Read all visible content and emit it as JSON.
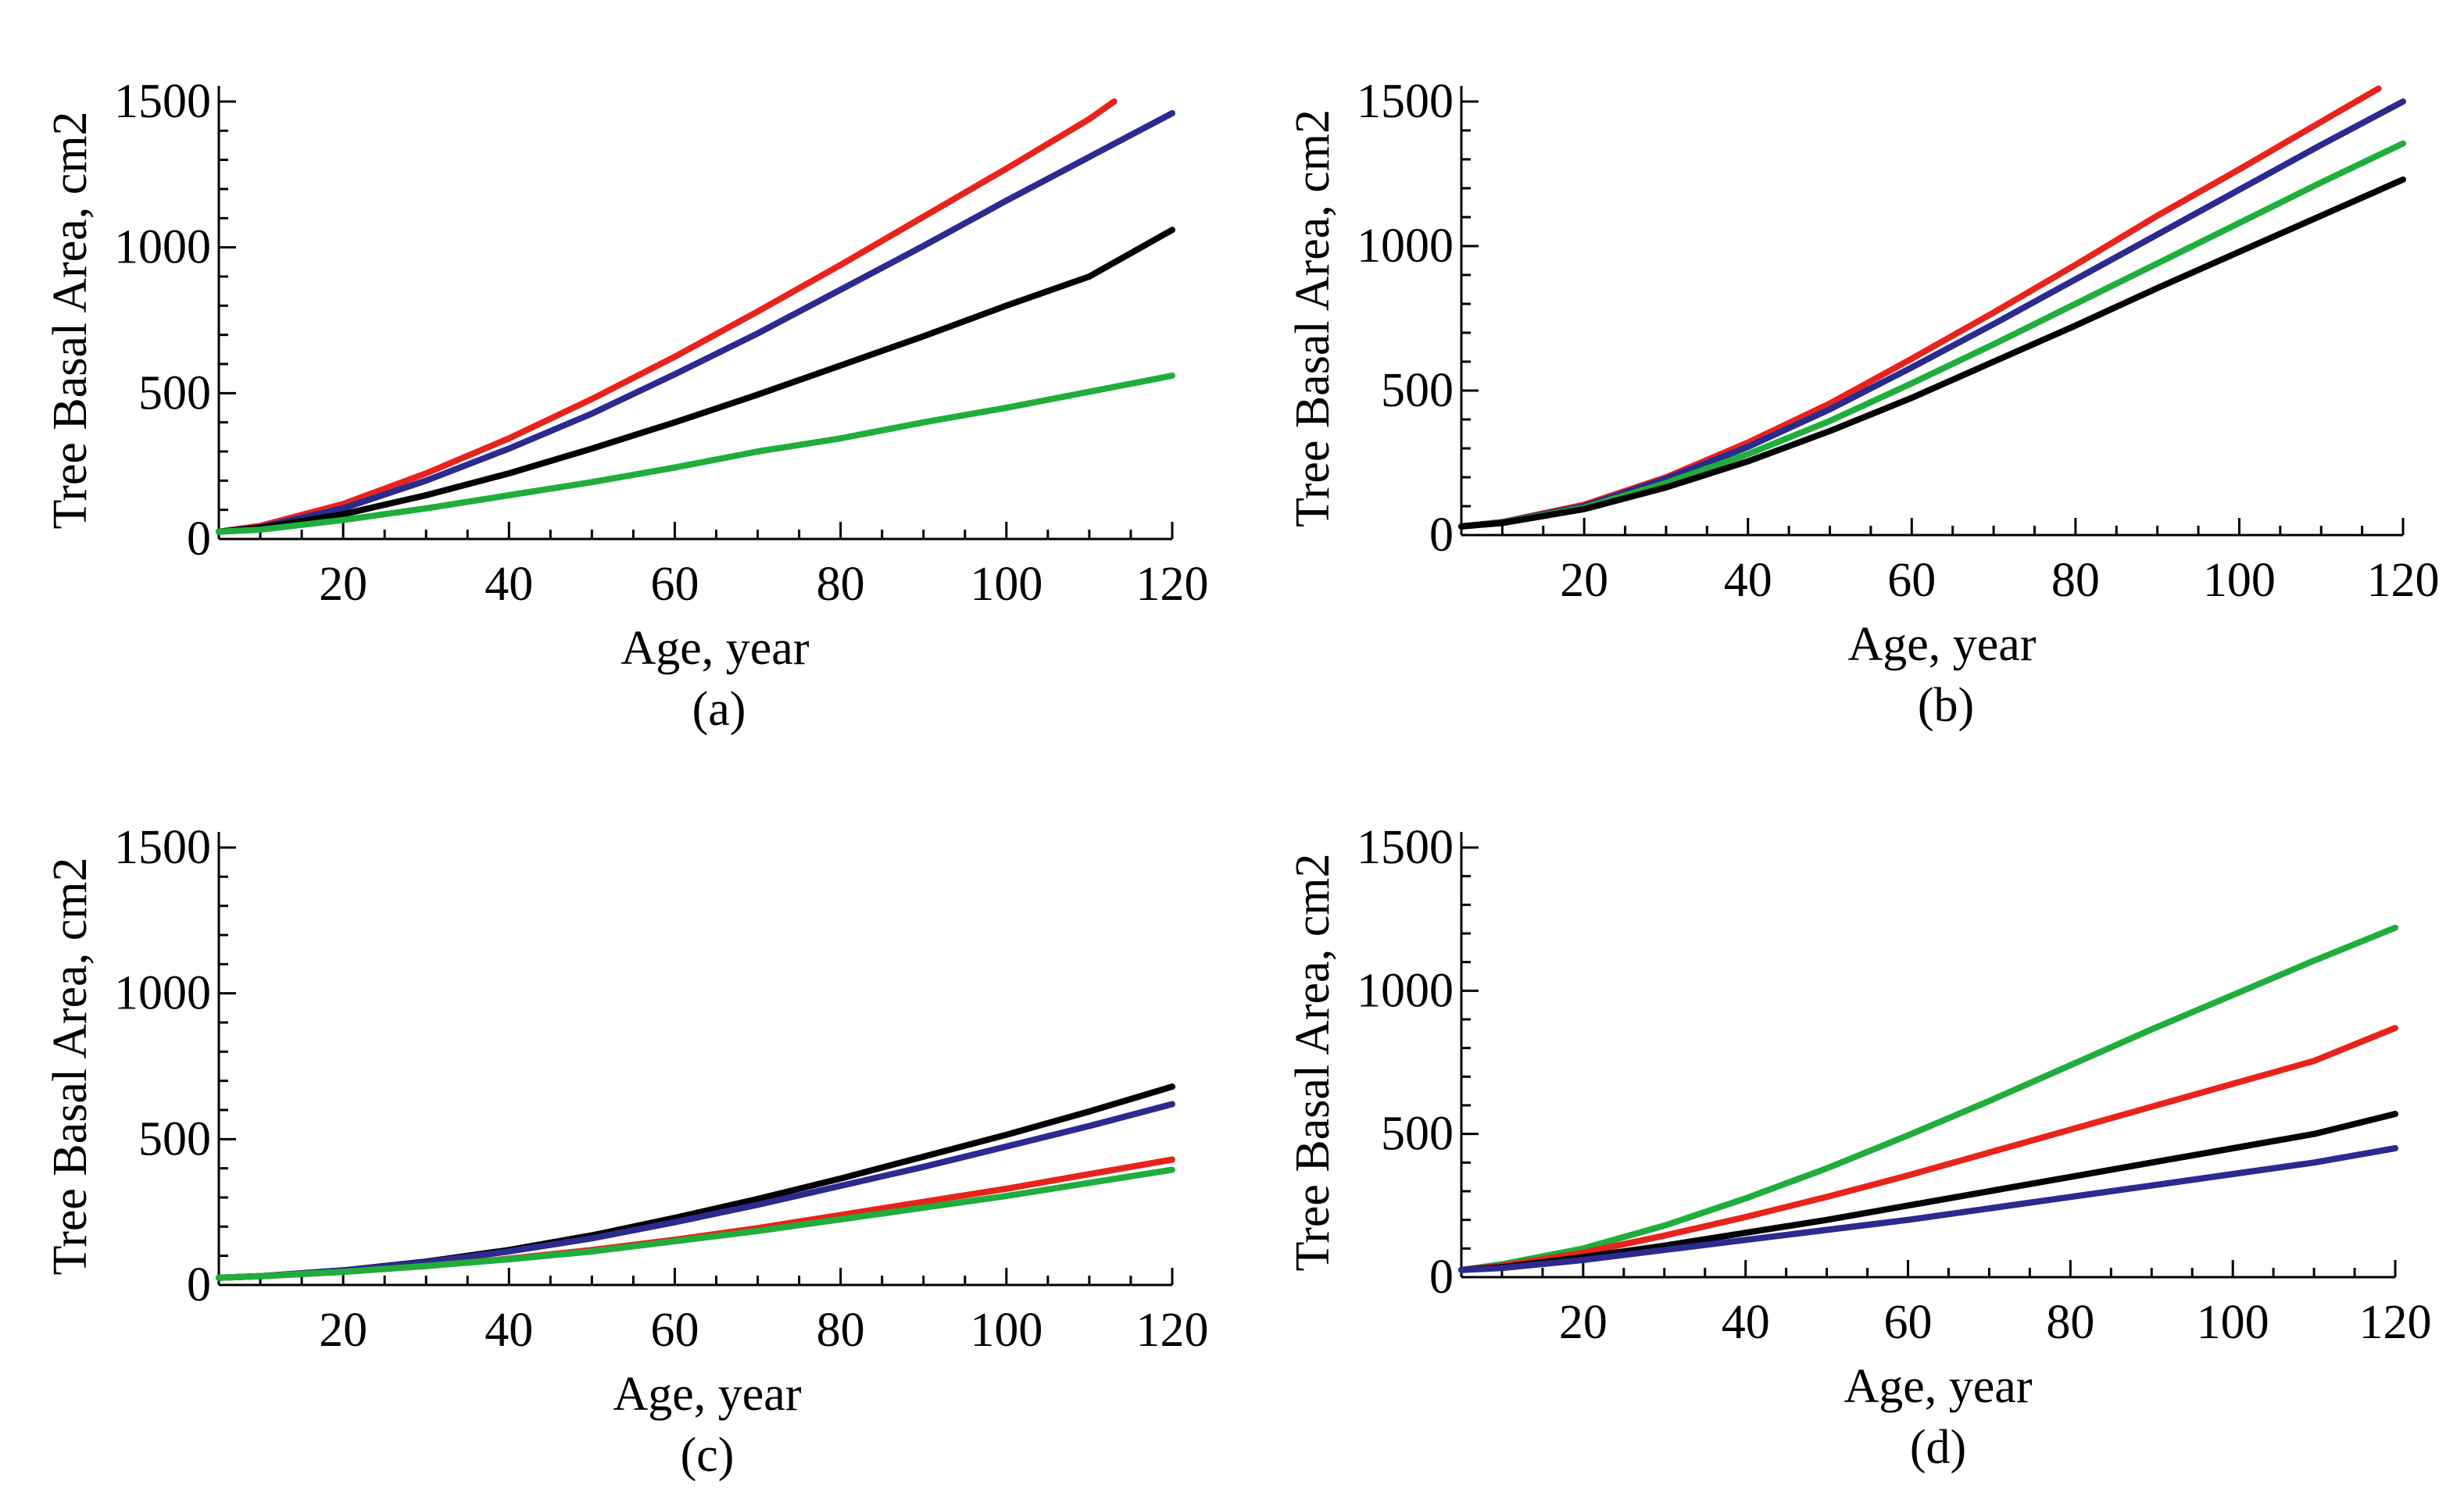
{
  "figure": {
    "colors": {
      "red": "#e8231c",
      "blue": "#2b2a8f",
      "black": "#000000",
      "green": "#1fae3c",
      "axis": "#000000"
    }
  },
  "chart_data": [
    {
      "type": "line",
      "panel": "(a)",
      "title": "",
      "xlabel": "Age, year",
      "ylabel": "Tree Basal Area, cm2",
      "xlim": [
        5,
        120
      ],
      "ylim": [
        0,
        1500
      ],
      "xticks": [
        20,
        40,
        60,
        80,
        100,
        120
      ],
      "yticks": [
        0,
        500,
        1000,
        1500
      ],
      "x": [
        5,
        10,
        20,
        30,
        40,
        50,
        60,
        70,
        80,
        90,
        100,
        110,
        120
      ],
      "series": [
        {
          "name": "red",
          "color": "#e8231c",
          "x": [
            5,
            10,
            20,
            30,
            40,
            50,
            60,
            70,
            80,
            90,
            100,
            110,
            113
          ],
          "values": [
            25,
            45,
            120,
            225,
            345,
            480,
            625,
            780,
            940,
            1105,
            1270,
            1440,
            1500
          ]
        },
        {
          "name": "blue",
          "color": "#2b2a8f",
          "values": [
            25,
            40,
            105,
            200,
            310,
            430,
            565,
            705,
            855,
            1005,
            1160,
            1310,
            1460
          ]
        },
        {
          "name": "black",
          "color": "#000000",
          "values": [
            25,
            38,
            85,
            150,
            225,
            310,
            400,
            495,
            595,
            695,
            800,
            900,
            1060
          ]
        },
        {
          "name": "green",
          "color": "#1fae3c",
          "values": [
            25,
            32,
            65,
            105,
            150,
            195,
            245,
            300,
            345,
            400,
            450,
            505,
            560
          ]
        }
      ]
    },
    {
      "type": "line",
      "panel": "(b)",
      "title": "",
      "xlabel": "Age, year",
      "ylabel": "Tree Basal Area, cm2",
      "xlim": [
        5,
        120
      ],
      "ylim": [
        0,
        1500
      ],
      "xticks": [
        20,
        40,
        60,
        80,
        100,
        120
      ],
      "yticks": [
        0,
        500,
        1000,
        1500
      ],
      "x": [
        5,
        10,
        20,
        30,
        40,
        50,
        60,
        70,
        80,
        90,
        100,
        110,
        120
      ],
      "series": [
        {
          "name": "red",
          "color": "#e8231c",
          "x": [
            5,
            10,
            20,
            30,
            40,
            50,
            60,
            70,
            80,
            90,
            100,
            110,
            117
          ],
          "values": [
            30,
            45,
            105,
            200,
            320,
            455,
            610,
            770,
            935,
            1105,
            1265,
            1430,
            1545
          ]
        },
        {
          "name": "blue",
          "color": "#2b2a8f",
          "values": [
            30,
            45,
            100,
            195,
            305,
            435,
            580,
            730,
            885,
            1040,
            1195,
            1350,
            1500
          ]
        },
        {
          "name": "green",
          "color": "#1fae3c",
          "values": [
            30,
            43,
            95,
            180,
            280,
            395,
            525,
            660,
            800,
            940,
            1080,
            1220,
            1355
          ]
        },
        {
          "name": "black",
          "color": "#000000",
          "values": [
            30,
            42,
            90,
            165,
            255,
            360,
            475,
            600,
            725,
            855,
            980,
            1105,
            1230
          ]
        }
      ]
    },
    {
      "type": "line",
      "panel": "(c)",
      "title": "",
      "xlabel": "Age, year",
      "ylabel": "Tree Basal Area, cm2",
      "xlim": [
        5,
        120
      ],
      "ylim": [
        0,
        1500
      ],
      "xticks": [
        20,
        40,
        60,
        80,
        100,
        120
      ],
      "yticks": [
        0,
        500,
        1000,
        1500
      ],
      "x": [
        5,
        10,
        20,
        30,
        40,
        50,
        60,
        70,
        80,
        90,
        100,
        110,
        120
      ],
      "series": [
        {
          "name": "black",
          "color": "#000000",
          "values": [
            25,
            30,
            50,
            80,
            120,
            170,
            230,
            295,
            365,
            440,
            515,
            595,
            680
          ]
        },
        {
          "name": "blue",
          "color": "#2b2a8f",
          "values": [
            25,
            30,
            50,
            78,
            115,
            160,
            215,
            275,
            340,
            405,
            475,
            545,
            620
          ]
        },
        {
          "name": "red",
          "color": "#e8231c",
          "values": [
            25,
            30,
            45,
            65,
            90,
            120,
            155,
            195,
            240,
            285,
            330,
            380,
            430
          ]
        },
        {
          "name": "green",
          "color": "#1fae3c",
          "values": [
            25,
            30,
            45,
            65,
            88,
            115,
            150,
            185,
            225,
            265,
            305,
            350,
            395
          ]
        }
      ]
    },
    {
      "type": "line",
      "panel": "(d)",
      "title": "",
      "xlabel": "Age, year",
      "ylabel": "Tree Basal Area, cm2",
      "xlim": [
        5,
        120
      ],
      "ylim": [
        0,
        1500
      ],
      "xticks": [
        20,
        40,
        60,
        80,
        100,
        120
      ],
      "yticks": [
        0,
        500,
        1000,
        1500
      ],
      "x": [
        5,
        10,
        20,
        30,
        40,
        50,
        60,
        70,
        80,
        90,
        100,
        110,
        120
      ],
      "series": [
        {
          "name": "green",
          "color": "#1fae3c",
          "values": [
            25,
            45,
            100,
            180,
            275,
            380,
            495,
            615,
            740,
            865,
            985,
            1105,
            1220
          ]
        },
        {
          "name": "red",
          "color": "#e8231c",
          "values": [
            25,
            40,
            85,
            145,
            210,
            280,
            355,
            435,
            515,
            595,
            675,
            755,
            870
          ]
        },
        {
          "name": "black",
          "color": "#000000",
          "values": [
            25,
            35,
            70,
            110,
            155,
            200,
            250,
            300,
            350,
            400,
            450,
            500,
            570
          ]
        },
        {
          "name": "blue",
          "color": "#2b2a8f",
          "values": [
            25,
            32,
            60,
            95,
            130,
            165,
            200,
            240,
            280,
            320,
            360,
            400,
            450
          ]
        }
      ]
    }
  ]
}
